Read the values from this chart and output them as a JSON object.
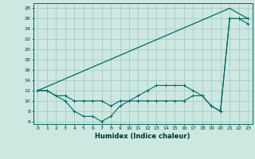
{
  "title": "",
  "xlabel": "Humidex (Indice chaleur)",
  "bg_color": "#cce8e0",
  "line_color": "#006868",
  "grid_color": "#a8ccc8",
  "xlim": [
    -0.5,
    23.5
  ],
  "ylim": [
    5.5,
    29
  ],
  "xticks": [
    0,
    1,
    2,
    3,
    4,
    5,
    6,
    7,
    8,
    9,
    10,
    11,
    12,
    13,
    14,
    15,
    16,
    17,
    18,
    19,
    20,
    21,
    22,
    23
  ],
  "yticks": [
    6,
    8,
    10,
    12,
    14,
    16,
    18,
    20,
    22,
    24,
    26,
    28
  ],
  "line1_x": [
    0,
    1,
    2,
    3,
    4,
    5,
    6,
    7,
    8,
    9,
    10,
    11,
    12,
    13,
    14,
    15,
    16,
    17,
    18,
    19,
    20,
    21,
    22,
    23
  ],
  "line1_y": [
    12,
    12,
    11,
    11,
    10,
    10,
    10,
    10,
    9,
    10,
    10,
    10,
    10,
    10,
    10,
    10,
    10,
    11,
    11,
    9,
    8,
    26,
    26,
    26
  ],
  "line2_x": [
    0,
    1,
    2,
    3,
    4,
    5,
    6,
    7,
    8,
    9,
    10,
    11,
    12,
    13,
    14,
    15,
    16,
    17,
    18,
    19,
    20,
    21,
    22,
    23
  ],
  "line2_y": [
    12,
    12,
    11,
    10,
    8,
    7,
    7,
    6,
    7,
    9,
    10,
    11,
    12,
    13,
    13,
    13,
    13,
    12,
    11,
    9,
    8,
    26,
    26,
    25
  ],
  "line3_x": [
    0,
    21,
    23
  ],
  "line3_y": [
    12,
    28,
    26
  ]
}
